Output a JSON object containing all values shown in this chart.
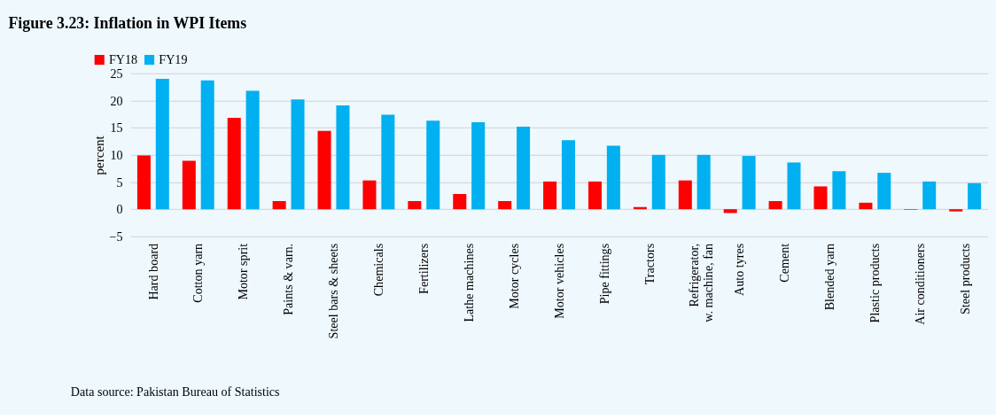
{
  "chart_data": {
    "type": "bar",
    "title": "Figure 3.23: Inflation  in  WPI Items",
    "ylabel": "percent",
    "categories": [
      "Hard board",
      "Cotton yarn",
      "Motor sprit",
      "Paints & varn.",
      "Steel bars & sheets",
      "Chemicals",
      "Fertilizers",
      "Lathe machines",
      "Motor cycles",
      "Motor vehicles",
      "Pipe fittings",
      "Tractors",
      "Refrigerator,\nw. machine, fan",
      "Auto tyres",
      "Cement",
      "Blended yarn",
      "Plastic products",
      "Air conditioners",
      "Steel products"
    ],
    "series": [
      {
        "name": "FY18",
        "color": "#ff0000",
        "values": [
          9.9,
          8.9,
          16.8,
          1.5,
          14.4,
          5.3,
          1.5,
          2.8,
          1.5,
          5.1,
          5.1,
          0.4,
          5.3,
          -0.7,
          1.5,
          4.2,
          1.2,
          -0.1,
          -0.4
        ]
      },
      {
        "name": "FY19",
        "color": "#00b0f0",
        "values": [
          24.0,
          23.7,
          21.8,
          20.2,
          19.1,
          17.4,
          16.3,
          16.0,
          15.2,
          12.7,
          11.7,
          10.0,
          10.0,
          9.8,
          8.6,
          7.0,
          6.7,
          5.1,
          4.8
        ]
      }
    ],
    "ylim": [
      -5,
      25
    ],
    "yticks": [
      -5,
      0,
      5,
      10,
      15,
      20,
      25
    ],
    "grid": "y",
    "legend": "top left",
    "annotations": [
      "Data source: Pakistan Bureau of Statistics"
    ]
  }
}
